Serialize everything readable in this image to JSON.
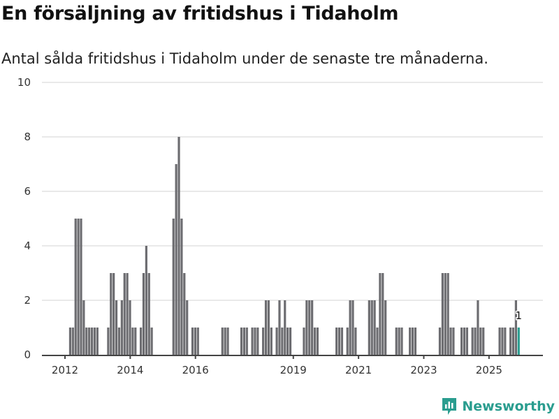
{
  "title": "En försäljning av fritidshus i Tidaholm",
  "subtitle": "Antal sålda fritidshus i Tidaholm under de senaste tre månaderna.",
  "logo": "Newsworthy",
  "chart_data": {
    "type": "bar",
    "title": "En försäljning av fritidshus i Tidaholm",
    "xlabel": "",
    "ylabel": "",
    "ylim": [
      0,
      10
    ],
    "yticks": [
      "0",
      "2",
      "4",
      "6",
      "8",
      "10"
    ],
    "xticks": [
      "2012",
      "2014",
      "2016",
      "2019",
      "2021",
      "2023",
      "2025"
    ],
    "x_range": [
      "2012-01",
      "2025-11"
    ],
    "grid": true,
    "bar_color": "#6d6d71",
    "highlight_color": "#2a9d8f",
    "highlight_label": "1",
    "x": [
      "2012-02",
      "2012-03",
      "2012-04",
      "2012-05",
      "2012-06",
      "2012-07",
      "2012-08",
      "2012-09",
      "2012-10",
      "2012-11",
      "2012-12",
      "2013-04",
      "2013-05",
      "2013-06",
      "2013-07",
      "2013-08",
      "2013-09",
      "2013-10",
      "2013-11",
      "2013-12",
      "2014-01",
      "2014-02",
      "2014-04",
      "2014-05",
      "2014-06",
      "2014-07",
      "2014-08",
      "2015-04",
      "2015-05",
      "2015-06",
      "2015-07",
      "2015-08",
      "2015-09",
      "2015-11",
      "2015-12",
      "2016-01",
      "2016-10",
      "2016-11",
      "2016-12",
      "2017-05",
      "2017-06",
      "2017-07",
      "2017-09",
      "2017-10",
      "2017-11",
      "2018-01",
      "2018-02",
      "2018-03",
      "2018-04",
      "2018-06",
      "2018-07",
      "2018-08",
      "2018-09",
      "2018-10",
      "2018-11",
      "2019-04",
      "2019-05",
      "2019-06",
      "2019-07",
      "2019-08",
      "2019-09",
      "2020-04",
      "2020-05",
      "2020-06",
      "2020-08",
      "2020-09",
      "2020-10",
      "2020-11",
      "2021-04",
      "2021-05",
      "2021-06",
      "2021-07",
      "2021-08",
      "2021-09",
      "2021-10",
      "2022-02",
      "2022-03",
      "2022-04",
      "2022-07",
      "2022-08",
      "2022-09",
      "2023-06",
      "2023-07",
      "2023-08",
      "2023-09",
      "2023-10",
      "2023-11",
      "2024-02",
      "2024-03",
      "2024-04",
      "2024-06",
      "2024-07",
      "2024-08",
      "2024-09",
      "2024-10",
      "2025-04",
      "2025-05",
      "2025-06",
      "2025-08",
      "2025-09",
      "2025-10",
      "2025-11"
    ],
    "values": [
      1,
      1,
      5,
      5,
      5,
      2,
      1,
      1,
      1,
      1,
      1,
      1,
      3,
      3,
      2,
      1,
      2,
      3,
      3,
      2,
      1,
      1,
      1,
      3,
      4,
      3,
      1,
      5,
      7,
      8,
      5,
      3,
      2,
      1,
      1,
      1,
      1,
      1,
      1,
      1,
      1,
      1,
      1,
      1,
      1,
      1,
      2,
      2,
      1,
      1,
      2,
      1,
      2,
      1,
      1,
      1,
      2,
      2,
      2,
      1,
      1,
      1,
      1,
      1,
      1,
      2,
      2,
      1,
      2,
      2,
      2,
      1,
      3,
      3,
      2,
      1,
      1,
      1,
      1,
      1,
      1,
      1,
      3,
      3,
      3,
      1,
      1,
      1,
      1,
      1,
      1,
      1,
      2,
      1,
      1,
      1,
      1,
      1,
      1,
      1,
      2,
      1
    ]
  }
}
